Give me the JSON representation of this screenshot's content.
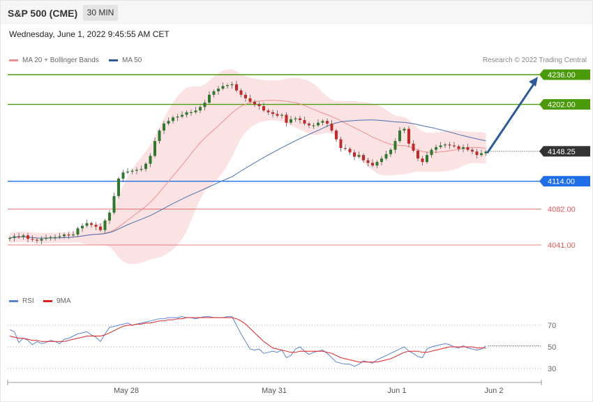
{
  "header": {
    "title": "S&P 500 (CME)",
    "timeframe": "30 MIN"
  },
  "timestamp": "Wednesday, June 1, 2022 9:45:55 AM CET",
  "legend": {
    "ma20": "MA 20 + Bollinger Bands",
    "ma50": "MA 50",
    "rsi": "RSI",
    "rsi_ma": "9MA"
  },
  "credit": "Research © 2022 Trading Central",
  "colors": {
    "green_level": "#4a9a09",
    "blue_level": "#1e6ee8",
    "red_level": "#e05a5a",
    "candle_up": "#2d7a2d",
    "candle_down": "#c62828",
    "band_fill": "#fbd9d9",
    "ma20": "#ef8f8f",
    "ma50": "#4a6fb0",
    "rsi_line": "#5a82d6",
    "rsi_ma": "#e02020",
    "current_tag": "#333333",
    "arrow": "#2e5a9c"
  },
  "chart_data": [
    {
      "type": "candlestick",
      "title": "",
      "ylim": [
        4010,
        4255
      ],
      "x_ticks": [
        "May 28",
        "May 31",
        "Jun 1",
        "Jun 2"
      ],
      "levels": [
        {
          "value": 4236.0,
          "label": "4236.00",
          "kind": "resistance"
        },
        {
          "value": 4202.0,
          "label": "4202.00",
          "kind": "resistance"
        },
        {
          "value": 4148.25,
          "label": "4148.25",
          "kind": "current"
        },
        {
          "value": 4114.0,
          "label": "4114.00",
          "kind": "pivot"
        },
        {
          "value": 4082.0,
          "label": "4082.00",
          "kind": "support"
        },
        {
          "value": 4041.0,
          "label": "4041.00",
          "kind": "support"
        }
      ],
      "close_series": [
        4049,
        4051,
        4050,
        4052,
        4048,
        4047,
        4046,
        4048,
        4049,
        4050,
        4050,
        4051,
        4053,
        4052,
        4053,
        4060,
        4063,
        4066,
        4064,
        4062,
        4058,
        4069,
        4078,
        4097,
        4117,
        4124,
        4125,
        4126,
        4127,
        4128,
        4134,
        4143,
        4160,
        4172,
        4180,
        4183,
        4187,
        4188,
        4190,
        4193,
        4193,
        4195,
        4199,
        4204,
        4213,
        4217,
        4220,
        4223,
        4224,
        4225,
        4218,
        4213,
        4209,
        4205,
        4202,
        4200,
        4195,
        4193,
        4191,
        4189,
        4190,
        4181,
        4185,
        4186,
        4184,
        4180,
        4178,
        4178,
        4181,
        4183,
        4180,
        4172,
        4162,
        4152,
        4151,
        4147,
        4142,
        4144,
        4138,
        4135,
        4132,
        4136,
        4140,
        4145,
        4150,
        4160,
        4172,
        4174,
        4157,
        4149,
        4140,
        4136,
        4144,
        4150,
        4153,
        4155,
        4156,
        4155,
        4154,
        4151,
        4153,
        4150,
        4148,
        4144,
        4146,
        4148
      ]
    },
    {
      "type": "line",
      "title": "",
      "ylim": [
        20,
        80
      ],
      "y_ticks": [
        70,
        50,
        30
      ],
      "current_value": 51,
      "series": [
        {
          "name": "RSI",
          "values": [
            66,
            64,
            54,
            58,
            56,
            52,
            55,
            53,
            54,
            56,
            55,
            53,
            57,
            58,
            60,
            62,
            63,
            64,
            61,
            59,
            55,
            62,
            68,
            69,
            70,
            71,
            72,
            70,
            71,
            72,
            73,
            74,
            75,
            76,
            76,
            77,
            77,
            77,
            78,
            77,
            77,
            76,
            77,
            78,
            78,
            77,
            77,
            77,
            78,
            78,
            70,
            62,
            55,
            48,
            47,
            48,
            44,
            45,
            46,
            45,
            47,
            40,
            42,
            48,
            50,
            46,
            43,
            45,
            46,
            47,
            44,
            40,
            36,
            35,
            34,
            34,
            32,
            34,
            37,
            36,
            35,
            38,
            40,
            42,
            44,
            46,
            48,
            50,
            46,
            44,
            41,
            40,
            48,
            50,
            51,
            52,
            53,
            52,
            50,
            49,
            51,
            49,
            48,
            47,
            48,
            51
          ]
        },
        {
          "name": "9MA",
          "values": [
            60,
            59,
            58,
            58,
            57,
            56,
            56,
            55,
            55,
            55,
            55,
            55,
            55,
            56,
            57,
            58,
            59,
            60,
            60,
            60,
            60,
            61,
            63,
            65,
            67,
            69,
            70,
            70,
            71,
            71,
            72,
            72,
            73,
            74,
            74,
            75,
            75,
            76,
            76,
            77,
            77,
            77,
            77,
            77,
            77,
            77,
            77,
            77,
            77,
            77,
            76,
            74,
            71,
            67,
            63,
            59,
            55,
            52,
            49,
            48,
            47,
            46,
            45,
            45,
            46,
            46,
            46,
            46,
            46,
            46,
            45,
            44,
            42,
            40,
            39,
            38,
            37,
            36,
            36,
            36,
            36,
            36,
            37,
            38,
            39,
            41,
            43,
            45,
            46,
            46,
            46,
            45,
            45,
            46,
            47,
            48,
            49,
            50,
            50,
            50,
            50,
            50,
            50,
            49,
            49,
            49
          ]
        }
      ]
    }
  ]
}
